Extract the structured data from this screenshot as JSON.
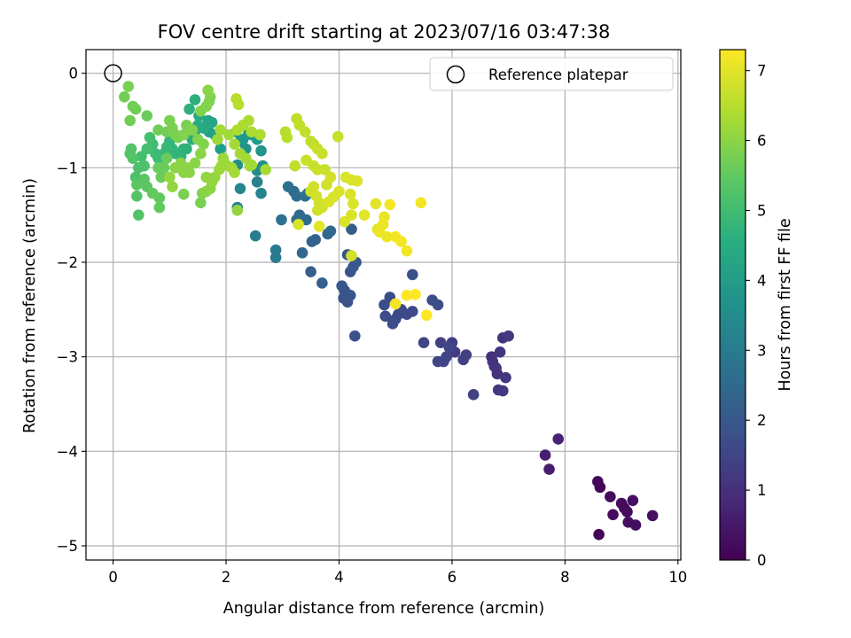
{
  "chart_data": {
    "type": "scatter",
    "title": "FOV centre drift starting at 2023/07/16 03:47:38",
    "xlabel": "Angular distance from reference (arcmin)",
    "ylabel": "Rotation from reference (arcmin)",
    "xlim": [
      -0.48,
      10.05
    ],
    "ylim": [
      -5.15,
      0.25
    ],
    "xticks": [
      0,
      2,
      4,
      6,
      8,
      10
    ],
    "yticks": [
      0,
      -1,
      -2,
      -3,
      -4,
      -5
    ],
    "xtick_labels": [
      "0",
      "2",
      "4",
      "6",
      "8",
      "10"
    ],
    "ytick_labels": [
      "0",
      "−1",
      "−2",
      "−3",
      "−4",
      "−5"
    ],
    "grid": true,
    "colormap": "viridis",
    "colorbar": {
      "label": "Hours from first FF file",
      "range": [
        0,
        7.3
      ],
      "ticks": [
        0,
        1,
        2,
        3,
        4,
        5,
        6,
        7
      ],
      "tick_labels": [
        "0",
        "1",
        "2",
        "3",
        "4",
        "5",
        "6",
        "7"
      ]
    },
    "reference": {
      "name": "Reference platepar",
      "x": 0,
      "y": 0,
      "marker": "open-circle"
    },
    "legend": {
      "position": "top-right",
      "entries": [
        "Reference platepar"
      ]
    },
    "points": [
      [
        8.58,
        -4.32,
        0.1
      ],
      [
        8.62,
        -4.38,
        0.1
      ],
      [
        8.6,
        -4.88,
        0.1
      ],
      [
        8.8,
        -4.48,
        0.2
      ],
      [
        8.85,
        -4.67,
        0.2
      ],
      [
        9.0,
        -4.55,
        0.2
      ],
      [
        9.05,
        -4.6,
        0.2
      ],
      [
        9.1,
        -4.64,
        0.2
      ],
      [
        9.12,
        -4.75,
        0.3
      ],
      [
        9.2,
        -4.52,
        0.3
      ],
      [
        9.25,
        -4.78,
        0.3
      ],
      [
        9.55,
        -4.68,
        0.3
      ],
      [
        7.65,
        -4.04,
        0.6
      ],
      [
        7.72,
        -4.19,
        0.6
      ],
      [
        7.88,
        -3.87,
        0.7
      ],
      [
        6.7,
        -3.0,
        1.0
      ],
      [
        6.75,
        -3.1,
        1.0
      ],
      [
        6.8,
        -3.18,
        1.0
      ],
      [
        6.82,
        -3.35,
        1.1
      ],
      [
        6.85,
        -2.95,
        1.1
      ],
      [
        6.9,
        -2.8,
        1.1
      ],
      [
        6.95,
        -3.22,
        1.2
      ],
      [
        7.0,
        -2.78,
        1.2
      ],
      [
        6.9,
        -3.36,
        1.2
      ],
      [
        6.72,
        -3.05,
        1.1
      ],
      [
        6.78,
        -3.12,
        1.1
      ],
      [
        6.0,
        -2.85,
        1.3
      ],
      [
        6.05,
        -2.95,
        1.3
      ],
      [
        6.2,
        -3.03,
        1.4
      ],
      [
        6.25,
        -2.98,
        1.4
      ],
      [
        6.38,
        -3.4,
        1.4
      ],
      [
        5.8,
        -2.85,
        1.4
      ],
      [
        5.85,
        -3.05,
        1.5
      ],
      [
        5.9,
        -3.0,
        1.5
      ],
      [
        5.75,
        -3.05,
        1.5
      ],
      [
        5.95,
        -2.9,
        1.5
      ],
      [
        5.5,
        -2.85,
        1.5
      ],
      [
        5.0,
        -2.6,
        1.6
      ],
      [
        5.05,
        -2.55,
        1.6
      ],
      [
        5.1,
        -2.5,
        1.6
      ],
      [
        5.2,
        -2.55,
        1.6
      ],
      [
        5.3,
        -2.52,
        1.6
      ],
      [
        4.8,
        -2.45,
        1.7
      ],
      [
        4.82,
        -2.57,
        1.7
      ],
      [
        4.9,
        -2.37,
        1.7
      ],
      [
        4.95,
        -2.65,
        1.7
      ],
      [
        5.3,
        -2.13,
        1.8
      ],
      [
        5.65,
        -2.4,
        1.7
      ],
      [
        5.75,
        -2.45,
        1.7
      ],
      [
        4.1,
        -2.3,
        1.9
      ],
      [
        4.12,
        -2.38,
        1.9
      ],
      [
        4.15,
        -1.92,
        1.9
      ],
      [
        4.2,
        -2.1,
        1.9
      ],
      [
        4.25,
        -2.05,
        2.0
      ],
      [
        4.3,
        -2.0,
        2.0
      ],
      [
        4.05,
        -2.25,
        2.0
      ],
      [
        4.2,
        -2.35,
        2.0
      ],
      [
        4.28,
        -2.78,
        1.8
      ],
      [
        4.22,
        -1.65,
        2.1
      ],
      [
        4.15,
        -2.42,
        1.9
      ],
      [
        4.08,
        -2.38,
        1.9
      ],
      [
        3.5,
        -2.1,
        2.2
      ],
      [
        3.7,
        -2.22,
        2.2
      ],
      [
        3.52,
        -1.78,
        2.3
      ],
      [
        3.58,
        -1.76,
        2.3
      ],
      [
        3.8,
        -1.7,
        2.4
      ],
      [
        3.85,
        -1.67,
        2.4
      ],
      [
        3.3,
        -1.5,
        2.5
      ],
      [
        3.42,
        -1.55,
        2.5
      ],
      [
        3.25,
        -1.55,
        2.6
      ],
      [
        3.2,
        -1.25,
        2.6
      ],
      [
        3.25,
        -1.3,
        2.6
      ],
      [
        3.1,
        -1.2,
        2.7
      ],
      [
        3.4,
        -1.3,
        2.7
      ],
      [
        3.45,
        -1.27,
        2.7
      ],
      [
        2.98,
        -1.55,
        2.7
      ],
      [
        3.35,
        -1.9,
        2.4
      ],
      [
        2.88,
        -1.87,
        3.0
      ],
      [
        2.88,
        -1.95,
        3.0
      ],
      [
        2.52,
        -1.72,
        3.1
      ],
      [
        2.2,
        -1.42,
        3.2
      ],
      [
        2.55,
        -1.15,
        3.2
      ],
      [
        2.62,
        -1.27,
        3.3
      ],
      [
        2.25,
        -1.22,
        3.4
      ],
      [
        2.55,
        -1.03,
        3.5
      ],
      [
        2.65,
        -0.98,
        3.5
      ],
      [
        2.2,
        -0.97,
        3.6
      ],
      [
        2.25,
        -0.72,
        3.6
      ],
      [
        2.35,
        -0.8,
        3.7
      ],
      [
        2.6,
        -0.65,
        3.7
      ],
      [
        2.62,
        -0.82,
        3.8
      ],
      [
        2.45,
        -0.65,
        3.8
      ],
      [
        2.3,
        -0.7,
        3.9
      ],
      [
        2.18,
        -0.62,
        3.9
      ],
      [
        2.4,
        -0.63,
        3.9
      ],
      [
        2.55,
        -0.7,
        4.0
      ],
      [
        1.9,
        -0.8,
        4.1
      ],
      [
        1.8,
        -0.65,
        4.2
      ],
      [
        1.7,
        -0.62,
        4.2
      ],
      [
        1.75,
        -0.52,
        4.3
      ],
      [
        1.68,
        -0.5,
        4.3
      ],
      [
        1.6,
        -0.58,
        4.4
      ],
      [
        1.52,
        -0.45,
        4.4
      ],
      [
        1.5,
        -0.55,
        4.5
      ],
      [
        1.45,
        -0.62,
        4.5
      ],
      [
        1.4,
        -0.7,
        4.5
      ],
      [
        1.3,
        -0.8,
        4.6
      ],
      [
        1.35,
        -0.38,
        4.6
      ],
      [
        1.45,
        -0.28,
        4.6
      ],
      [
        1.2,
        -0.88,
        4.7
      ],
      [
        1.25,
        -0.8,
        4.7
      ],
      [
        1.1,
        -0.85,
        4.8
      ],
      [
        1.05,
        -0.8,
        4.8
      ],
      [
        1.0,
        -0.72,
        4.8
      ],
      [
        0.95,
        -0.78,
        4.9
      ],
      [
        0.9,
        -0.85,
        4.9
      ],
      [
        0.85,
        -0.95,
        4.9
      ],
      [
        0.8,
        -0.9,
        5.0
      ],
      [
        0.75,
        -0.85,
        5.0
      ],
      [
        0.7,
        -0.75,
        5.0
      ],
      [
        0.65,
        -0.68,
        5.1
      ],
      [
        0.6,
        -0.8,
        5.1
      ],
      [
        0.5,
        -0.88,
        5.1
      ],
      [
        0.55,
        -0.98,
        5.2
      ],
      [
        0.45,
        -1.0,
        5.2
      ],
      [
        0.4,
        -1.1,
        5.2
      ],
      [
        0.35,
        -0.9,
        5.3
      ],
      [
        0.32,
        -0.8,
        5.3
      ],
      [
        0.3,
        -0.85,
        5.3
      ],
      [
        0.42,
        -1.3,
        5.3
      ],
      [
        0.45,
        -1.5,
        5.3
      ],
      [
        0.42,
        -1.18,
        5.4
      ],
      [
        0.55,
        -1.12,
        5.4
      ],
      [
        0.6,
        -1.2,
        5.4
      ],
      [
        0.7,
        -1.27,
        5.5
      ],
      [
        0.82,
        -1.32,
        5.5
      ],
      [
        0.82,
        -1.42,
        5.5
      ],
      [
        0.85,
        -1.1,
        5.6
      ],
      [
        0.8,
        -1.0,
        5.6
      ],
      [
        0.9,
        -1.0,
        5.6
      ],
      [
        0.95,
        -0.9,
        5.6
      ],
      [
        0.6,
        -0.45,
        5.6
      ],
      [
        0.4,
        -0.38,
        5.7
      ],
      [
        0.35,
        -0.35,
        5.7
      ],
      [
        0.3,
        -0.5,
        5.7
      ],
      [
        0.2,
        -0.25,
        5.7
      ],
      [
        0.27,
        -0.14,
        5.8
      ],
      [
        0.8,
        -0.6,
        5.7
      ],
      [
        0.95,
        -0.62,
        5.7
      ],
      [
        1.05,
        -0.58,
        5.8
      ],
      [
        1.1,
        -0.65,
        5.8
      ],
      [
        1.0,
        -0.5,
        5.8
      ],
      [
        1.15,
        -0.68,
        5.8
      ],
      [
        1.3,
        -0.55,
        5.8
      ],
      [
        1.25,
        -0.65,
        5.9
      ],
      [
        1.4,
        -0.6,
        5.9
      ],
      [
        1.5,
        -0.7,
        5.9
      ],
      [
        1.6,
        -0.75,
        5.9
      ],
      [
        1.55,
        -0.4,
        5.9
      ],
      [
        1.65,
        -0.35,
        5.9
      ],
      [
        1.7,
        -0.3,
        5.9
      ],
      [
        1.72,
        -0.25,
        5.9
      ],
      [
        1.68,
        -0.18,
        6.0
      ],
      [
        1.55,
        -0.85,
        6.0
      ],
      [
        1.45,
        -0.95,
        6.0
      ],
      [
        1.35,
        -1.05,
        6.0
      ],
      [
        1.3,
        -1.0,
        6.0
      ],
      [
        1.25,
        -1.05,
        6.0
      ],
      [
        1.2,
        -0.95,
        6.0
      ],
      [
        1.1,
        -1.0,
        6.0
      ],
      [
        1.0,
        -1.1,
        6.1
      ],
      [
        1.05,
        -1.2,
        6.1
      ],
      [
        1.25,
        -1.28,
        5.8
      ],
      [
        1.55,
        -1.37,
        5.8
      ],
      [
        1.58,
        -1.27,
        5.9
      ],
      [
        1.65,
        -1.25,
        6.0
      ],
      [
        1.72,
        -1.22,
        6.0
      ],
      [
        1.75,
        -1.15,
        6.1
      ],
      [
        1.8,
        -1.1,
        6.1
      ],
      [
        1.88,
        -1.02,
        6.2
      ],
      [
        1.92,
        -0.98,
        6.2
      ],
      [
        1.95,
        -0.9,
        6.2
      ],
      [
        2.0,
        -0.97,
        6.2
      ],
      [
        2.1,
        -1.0,
        6.3
      ],
      [
        2.15,
        -1.05,
        6.3
      ],
      [
        1.85,
        -0.7,
        6.2
      ],
      [
        1.9,
        -0.6,
        6.3
      ],
      [
        2.05,
        -0.65,
        6.3
      ],
      [
        2.15,
        -0.75,
        6.3
      ],
      [
        2.25,
        -0.85,
        6.3
      ],
      [
        2.35,
        -0.9,
        6.3
      ],
      [
        2.42,
        -0.98,
        6.3
      ],
      [
        2.45,
        -0.97,
        6.3
      ],
      [
        2.2,
        -0.6,
        6.4
      ],
      [
        2.3,
        -0.55,
        6.4
      ],
      [
        2.4,
        -0.5,
        6.4
      ],
      [
        2.45,
        -0.62,
        6.4
      ],
      [
        2.6,
        -0.65,
        6.4
      ],
      [
        2.7,
        -1.02,
        6.3
      ],
      [
        2.18,
        -0.27,
        6.5
      ],
      [
        2.22,
        -0.33,
        6.5
      ],
      [
        2.2,
        -1.45,
        6.1
      ],
      [
        1.65,
        -1.1,
        6.1
      ],
      [
        3.05,
        -0.62,
        6.5
      ],
      [
        3.08,
        -0.68,
        6.5
      ],
      [
        3.25,
        -0.48,
        6.6
      ],
      [
        3.3,
        -0.55,
        6.6
      ],
      [
        3.4,
        -0.62,
        6.6
      ],
      [
        3.5,
        -0.72,
        6.6
      ],
      [
        3.55,
        -0.75,
        6.6
      ],
      [
        3.62,
        -0.8,
        6.7
      ],
      [
        3.7,
        -0.85,
        6.7
      ],
      [
        3.98,
        -0.67,
        6.7
      ],
      [
        3.22,
        -0.98,
        6.6
      ],
      [
        3.42,
        -0.92,
        6.7
      ],
      [
        3.55,
        -0.98,
        6.7
      ],
      [
        3.62,
        -1.02,
        6.7
      ],
      [
        3.75,
        -1.02,
        6.7
      ],
      [
        3.85,
        -1.1,
        6.8
      ],
      [
        3.78,
        -1.18,
        6.8
      ],
      [
        3.55,
        -1.2,
        6.8
      ],
      [
        3.5,
        -1.25,
        6.8
      ],
      [
        3.6,
        -1.3,
        6.8
      ],
      [
        3.65,
        -1.37,
        6.8
      ],
      [
        3.62,
        -1.45,
        6.8
      ],
      [
        3.7,
        -1.42,
        6.8
      ],
      [
        3.82,
        -1.36,
        6.9
      ],
      [
        3.9,
        -1.31,
        6.9
      ],
      [
        4.0,
        -1.25,
        6.9
      ],
      [
        4.2,
        -1.28,
        6.9
      ],
      [
        4.12,
        -1.1,
        6.9
      ],
      [
        4.22,
        -1.13,
        6.9
      ],
      [
        4.32,
        -1.14,
        6.9
      ],
      [
        4.1,
        -1.57,
        6.9
      ],
      [
        4.22,
        -1.5,
        6.9
      ],
      [
        3.28,
        -1.6,
        6.9
      ],
      [
        3.65,
        -1.62,
        7.0
      ],
      [
        4.22,
        -1.93,
        6.8
      ],
      [
        4.25,
        -1.38,
        6.9
      ],
      [
        4.45,
        -1.5,
        7.0
      ],
      [
        4.65,
        -1.38,
        7.0
      ],
      [
        4.68,
        -1.65,
        7.0
      ],
      [
        4.72,
        -1.68,
        7.1
      ],
      [
        4.78,
        -1.6,
        7.1
      ],
      [
        4.8,
        -1.52,
        7.1
      ],
      [
        4.85,
        -1.73,
        7.1
      ],
      [
        4.9,
        -1.39,
        7.2
      ],
      [
        5.0,
        -1.73,
        7.2
      ],
      [
        5.1,
        -1.78,
        7.2
      ],
      [
        5.2,
        -1.88,
        7.2
      ],
      [
        5.45,
        -1.37,
        7.2
      ],
      [
        5.0,
        -2.44,
        7.2
      ],
      [
        5.2,
        -2.35,
        7.3
      ],
      [
        5.35,
        -2.34,
        7.3
      ],
      [
        5.55,
        -2.56,
        7.3
      ]
    ]
  }
}
